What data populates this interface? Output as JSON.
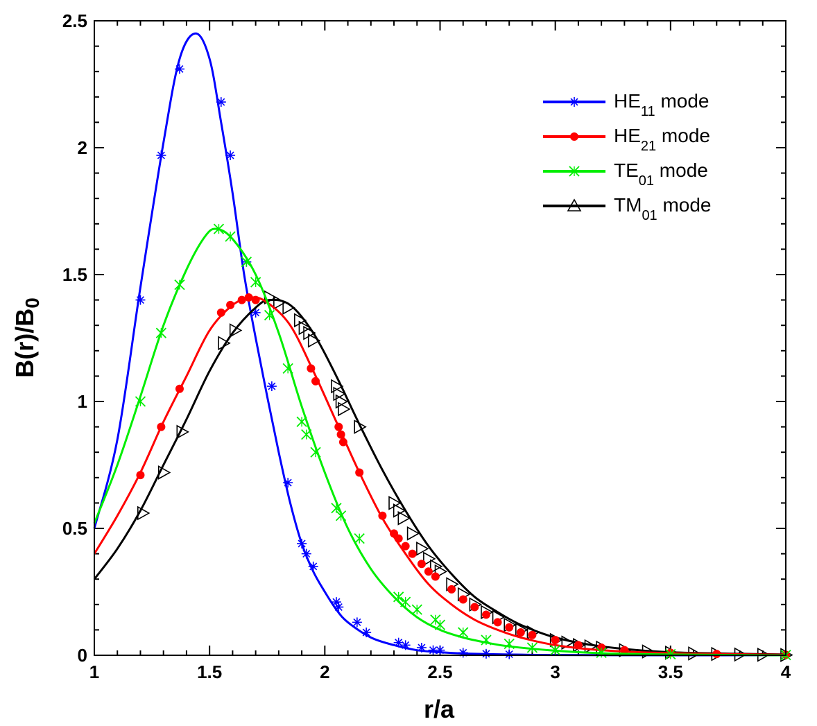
{
  "chart_data": {
    "type": "line",
    "title": "",
    "xlabel": "r/a",
    "ylabel": {
      "main": "B(r)/B",
      "sub": "0"
    },
    "xlim": [
      1,
      4
    ],
    "ylim": [
      0,
      2.5
    ],
    "xticks": [
      1,
      1.5,
      2,
      2.5,
      3,
      3.5,
      4
    ],
    "xtick_labels": [
      "1",
      "1.5",
      "2",
      "2.5",
      "3",
      "3.5",
      "4"
    ],
    "yticks": [
      0,
      0.5,
      1,
      1.5,
      2,
      2.5
    ],
    "ytick_labels": [
      "0",
      "0.5",
      "1",
      "1.5",
      "2",
      "2.5"
    ],
    "legend_position": "top-right",
    "series": [
      {
        "name": "HE11 mode",
        "label_main": "HE",
        "label_sub": "11",
        "label_suffix": " mode",
        "color": "#0000ff",
        "marker": "asterisk",
        "x": [
          1.0,
          1.1,
          1.2,
          1.3,
          1.37,
          1.44,
          1.5,
          1.55,
          1.6,
          1.65,
          1.7,
          1.75,
          1.8,
          1.85,
          1.9,
          1.95,
          2.0,
          2.05,
          2.1,
          2.2,
          2.3,
          2.4,
          2.5,
          2.6,
          2.8,
          3.0,
          3.5,
          4.0
        ],
        "y": [
          0.5,
          0.85,
          1.45,
          2.02,
          2.35,
          2.45,
          2.35,
          2.1,
          1.82,
          1.5,
          1.25,
          1.02,
          0.8,
          0.6,
          0.44,
          0.33,
          0.25,
          0.18,
          0.13,
          0.07,
          0.04,
          0.02,
          0.012,
          0.007,
          0.003,
          0.001,
          0.0,
          0.0
        ],
        "marker_x": [
          1.2,
          1.29,
          1.37,
          1.55,
          1.59,
          1.66,
          1.7,
          1.77,
          1.84,
          1.9,
          1.92,
          1.95,
          2.05,
          2.06,
          2.14,
          2.18,
          2.32,
          2.35,
          2.42,
          2.47,
          2.5,
          2.6,
          2.7,
          2.8
        ],
        "marker_y": [
          1.4,
          1.97,
          2.31,
          2.18,
          1.97,
          1.55,
          1.35,
          1.06,
          0.68,
          0.44,
          0.4,
          0.35,
          0.21,
          0.19,
          0.13,
          0.09,
          0.05,
          0.04,
          0.03,
          0.02,
          0.02,
          0.01,
          0.006,
          0.004
        ]
      },
      {
        "name": "HE21 mode",
        "label_main": "HE",
        "label_sub": "21",
        "label_suffix": " mode",
        "color": "#ff0000",
        "marker": "circle",
        "x": [
          1.0,
          1.1,
          1.2,
          1.3,
          1.4,
          1.5,
          1.6,
          1.68,
          1.75,
          1.85,
          1.95,
          2.05,
          2.15,
          2.25,
          2.35,
          2.45,
          2.55,
          2.65,
          2.75,
          2.85,
          3.0,
          3.2,
          3.5,
          4.0
        ],
        "y": [
          0.4,
          0.55,
          0.72,
          0.92,
          1.1,
          1.28,
          1.38,
          1.41,
          1.39,
          1.3,
          1.12,
          0.92,
          0.72,
          0.54,
          0.4,
          0.28,
          0.2,
          0.14,
          0.1,
          0.07,
          0.04,
          0.02,
          0.008,
          0.002
        ],
        "marker_x": [
          1.2,
          1.29,
          1.37,
          1.55,
          1.59,
          1.64,
          1.67,
          1.7,
          1.94,
          1.96,
          2.06,
          2.07,
          2.08,
          2.15,
          2.25,
          2.3,
          2.32,
          2.35,
          2.38,
          2.42,
          2.45,
          2.48,
          2.55,
          2.6,
          2.65,
          2.7,
          2.75,
          2.8,
          2.85,
          2.9,
          3.0,
          3.1,
          3.2,
          3.3,
          3.5,
          3.7,
          4.0
        ],
        "marker_y": [
          0.71,
          0.9,
          1.05,
          1.35,
          1.38,
          1.4,
          1.41,
          1.4,
          1.13,
          1.08,
          0.9,
          0.87,
          0.84,
          0.72,
          0.55,
          0.48,
          0.46,
          0.43,
          0.4,
          0.36,
          0.33,
          0.31,
          0.26,
          0.22,
          0.19,
          0.16,
          0.13,
          0.11,
          0.09,
          0.08,
          0.06,
          0.04,
          0.03,
          0.02,
          0.01,
          0.005,
          0.002
        ]
      },
      {
        "name": "TE01 mode",
        "label_main": "TE",
        "label_sub": "01",
        "label_suffix": " mode",
        "color": "#00ee00",
        "marker": "x",
        "x": [
          1.0,
          1.1,
          1.2,
          1.3,
          1.4,
          1.48,
          1.53,
          1.6,
          1.7,
          1.8,
          1.9,
          2.0,
          2.1,
          2.2,
          2.3,
          2.4,
          2.5,
          2.6,
          2.7,
          2.8,
          3.0,
          3.2,
          3.5,
          4.0
        ],
        "y": [
          0.52,
          0.75,
          1.02,
          1.3,
          1.52,
          1.65,
          1.68,
          1.64,
          1.5,
          1.27,
          0.98,
          0.72,
          0.5,
          0.34,
          0.23,
          0.15,
          0.1,
          0.07,
          0.05,
          0.035,
          0.018,
          0.008,
          0.003,
          0.0
        ],
        "marker_x": [
          1.2,
          1.29,
          1.37,
          1.54,
          1.59,
          1.66,
          1.7,
          1.76,
          1.84,
          1.9,
          1.92,
          1.96,
          2.05,
          2.07,
          2.15,
          2.32,
          2.35,
          2.4,
          2.48,
          2.5,
          2.6,
          2.7,
          2.8,
          2.9,
          3.0,
          3.2,
          3.5,
          4.0
        ],
        "marker_y": [
          1.0,
          1.27,
          1.46,
          1.68,
          1.65,
          1.55,
          1.47,
          1.34,
          1.13,
          0.92,
          0.87,
          0.8,
          0.58,
          0.55,
          0.46,
          0.23,
          0.21,
          0.18,
          0.14,
          0.12,
          0.09,
          0.06,
          0.045,
          0.03,
          0.02,
          0.01,
          0.004,
          0.001
        ]
      },
      {
        "name": "TM01 mode",
        "label_main": "TM",
        "label_sub": "01",
        "label_suffix": " mode",
        "color": "#000000",
        "marker": "triangle",
        "x": [
          1.0,
          1.1,
          1.2,
          1.3,
          1.4,
          1.5,
          1.6,
          1.7,
          1.76,
          1.85,
          1.95,
          2.05,
          2.15,
          2.25,
          2.35,
          2.45,
          2.55,
          2.65,
          2.75,
          2.85,
          3.0,
          3.2,
          3.5,
          4.0
        ],
        "y": [
          0.3,
          0.42,
          0.57,
          0.75,
          0.93,
          1.12,
          1.27,
          1.37,
          1.4,
          1.38,
          1.27,
          1.1,
          0.91,
          0.73,
          0.57,
          0.43,
          0.32,
          0.23,
          0.17,
          0.12,
          0.07,
          0.035,
          0.012,
          0.003
        ],
        "marker_x": [
          1.21,
          1.3,
          1.38,
          1.56,
          1.61,
          1.76,
          1.8,
          1.84,
          1.89,
          1.91,
          1.93,
          1.95,
          2.05,
          2.06,
          2.07,
          2.08,
          2.15,
          2.3,
          2.32,
          2.34,
          2.38,
          2.42,
          2.45,
          2.48,
          2.5,
          2.55,
          2.6,
          2.65,
          2.7,
          2.75,
          2.8,
          2.85,
          2.9,
          3.0,
          3.05,
          3.1,
          3.15,
          3.2,
          3.3,
          3.4,
          3.5,
          3.6,
          3.7,
          3.8,
          3.9,
          4.0
        ],
        "marker_y": [
          0.56,
          0.72,
          0.88,
          1.23,
          1.28,
          1.41,
          1.39,
          1.37,
          1.32,
          1.29,
          1.27,
          1.24,
          1.06,
          1.03,
          1.0,
          0.97,
          0.9,
          0.6,
          0.57,
          0.54,
          0.48,
          0.42,
          0.38,
          0.35,
          0.33,
          0.28,
          0.24,
          0.2,
          0.17,
          0.15,
          0.12,
          0.1,
          0.09,
          0.06,
          0.05,
          0.04,
          0.035,
          0.03,
          0.02,
          0.015,
          0.01,
          0.007,
          0.005,
          0.003,
          0.002,
          0.001
        ]
      }
    ]
  }
}
